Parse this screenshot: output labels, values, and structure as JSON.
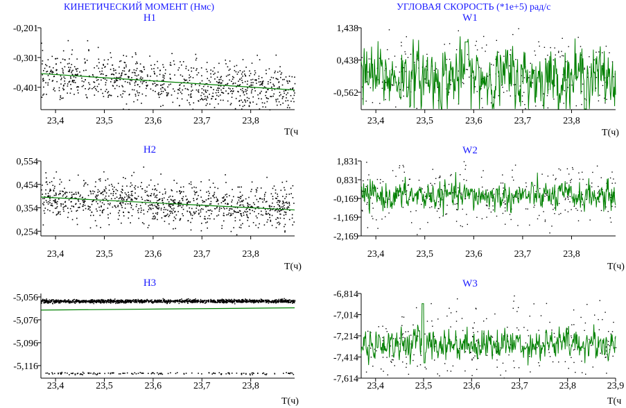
{
  "header": {
    "left": "КИНЕТИЧЕСКИЙ МОМЕНТ  (Нмс)",
    "right": "УГЛОВАЯ СКОРОСТЬ    (*1e+5) рад/с"
  },
  "colors": {
    "line": "#008000",
    "points": "#000000",
    "title": "#1a1aff"
  },
  "chart_data": [
    {
      "id": "H1",
      "type": "scatter",
      "title": "H1",
      "xlabel": "Т(ч",
      "xlim": [
        23.37,
        23.89
      ],
      "ylim": [
        -0.476,
        -0.201
      ],
      "yticks": [
        "-0,201",
        "-0,301",
        "-0,401"
      ],
      "ytick_values": [
        -0.201,
        -0.301,
        -0.401
      ],
      "xticks": [
        "23,4",
        "23,5",
        "23,6",
        "23,7",
        "23,8"
      ],
      "xtick_values": [
        23.4,
        23.5,
        23.6,
        23.7,
        23.8
      ],
      "scatter_center_start": -0.36,
      "scatter_center_end": -0.41,
      "scatter_spread": 0.04,
      "scatter_count": 900,
      "line": {
        "x": [
          23.37,
          23.89
        ],
        "y": [
          -0.355,
          -0.41
        ]
      }
    },
    {
      "id": "W1",
      "type": "line",
      "title": "W1",
      "xlabel": "Т(ч)",
      "xlim": [
        23.37,
        23.89
      ],
      "ylim": [
        -1.1,
        1.438
      ],
      "yticks": [
        "1,438",
        "0,438",
        "-0,562"
      ],
      "ytick_values": [
        1.438,
        0.438,
        -0.562
      ],
      "xticks": [
        "23,4",
        "23,5",
        "23,6",
        "23,7",
        "23,8"
      ],
      "xtick_values": [
        23.4,
        23.5,
        23.6,
        23.7,
        23.8
      ],
      "signal_mean": -0.1,
      "signal_amplitude": 0.45,
      "scatter_spread": 0.7,
      "scatter_count": 260
    },
    {
      "id": "H2",
      "type": "scatter",
      "title": "H2",
      "xlabel": "Т(ч)",
      "xlim": [
        23.37,
        23.89
      ],
      "ylim": [
        0.234,
        0.554
      ],
      "yticks": [
        "0,554",
        "0,454",
        "0,354",
        "0,254"
      ],
      "ytick_values": [
        0.554,
        0.454,
        0.354,
        0.254
      ],
      "xticks": [
        "23,4",
        "23,5",
        "23,6",
        "23,7",
        "23,8"
      ],
      "xtick_values": [
        23.4,
        23.5,
        23.6,
        23.7,
        23.8
      ],
      "scatter_center_start": 0.4,
      "scatter_center_end": 0.35,
      "scatter_spread": 0.045,
      "scatter_count": 1000,
      "line": {
        "x": [
          23.37,
          23.89
        ],
        "y": [
          0.4,
          0.345
        ]
      }
    },
    {
      "id": "W2",
      "type": "line",
      "title": "W2",
      "xlabel": "Т(ч)",
      "xlim": [
        23.37,
        23.89
      ],
      "ylim": [
        -2.169,
        1.831
      ],
      "yticks": [
        "1,831",
        "0,831",
        "-0,169",
        "-1,169",
        "-2,169"
      ],
      "ytick_values": [
        1.831,
        0.831,
        -0.169,
        -1.169,
        -2.169
      ],
      "xticks": [
        "23,4",
        "23,5",
        "23,6",
        "23,7",
        "23,8"
      ],
      "xtick_values": [
        23.4,
        23.5,
        23.6,
        23.7,
        23.8
      ],
      "signal_mean": -0.05,
      "signal_amplitude": 0.35,
      "scatter_spread": 0.9,
      "scatter_count": 300
    },
    {
      "id": "H3",
      "type": "scatter",
      "title": "H3",
      "xlabel": "Т(ч)",
      "xlim": [
        23.37,
        23.89
      ],
      "ylim": [
        -5.127,
        -5.053
      ],
      "yticks": [
        "-5,056",
        "-5,076",
        "-5,096",
        "-5,116"
      ],
      "ytick_values": [
        -5.056,
        -5.076,
        -5.096,
        -5.116
      ],
      "xticks": [
        "23,4",
        "23,5",
        "23,6",
        "23,7",
        "23,8"
      ],
      "xtick_values": [
        23.4,
        23.5,
        23.6,
        23.7,
        23.8
      ],
      "band_upper": -5.0593,
      "band_lower": -5.1225,
      "upper_count": 1400,
      "lower_count": 140,
      "line": {
        "x": [
          23.37,
          23.89
        ],
        "y": [
          -5.0675,
          -5.0655
        ]
      }
    },
    {
      "id": "W3",
      "type": "line",
      "title": "W3",
      "xlabel": "Т(ч",
      "xlim": [
        23.37,
        23.9
      ],
      "ylim": [
        -7.614,
        -6.814
      ],
      "yticks": [
        "-6,814",
        "-7,014",
        "-7,214",
        "-7,414",
        "-7,614"
      ],
      "ytick_values": [
        -6.814,
        -7.014,
        -7.214,
        -7.414,
        -7.614
      ],
      "xticks": [
        "23,4",
        "23,5",
        "23,6",
        "23,7",
        "23,8",
        "23,9"
      ],
      "xtick_values": [
        23.4,
        23.5,
        23.6,
        23.7,
        23.8,
        23.9
      ],
      "signal_mean": -7.29,
      "signal_amplitude": 0.07,
      "scatter_spread": 0.2,
      "scatter_count": 260
    }
  ]
}
